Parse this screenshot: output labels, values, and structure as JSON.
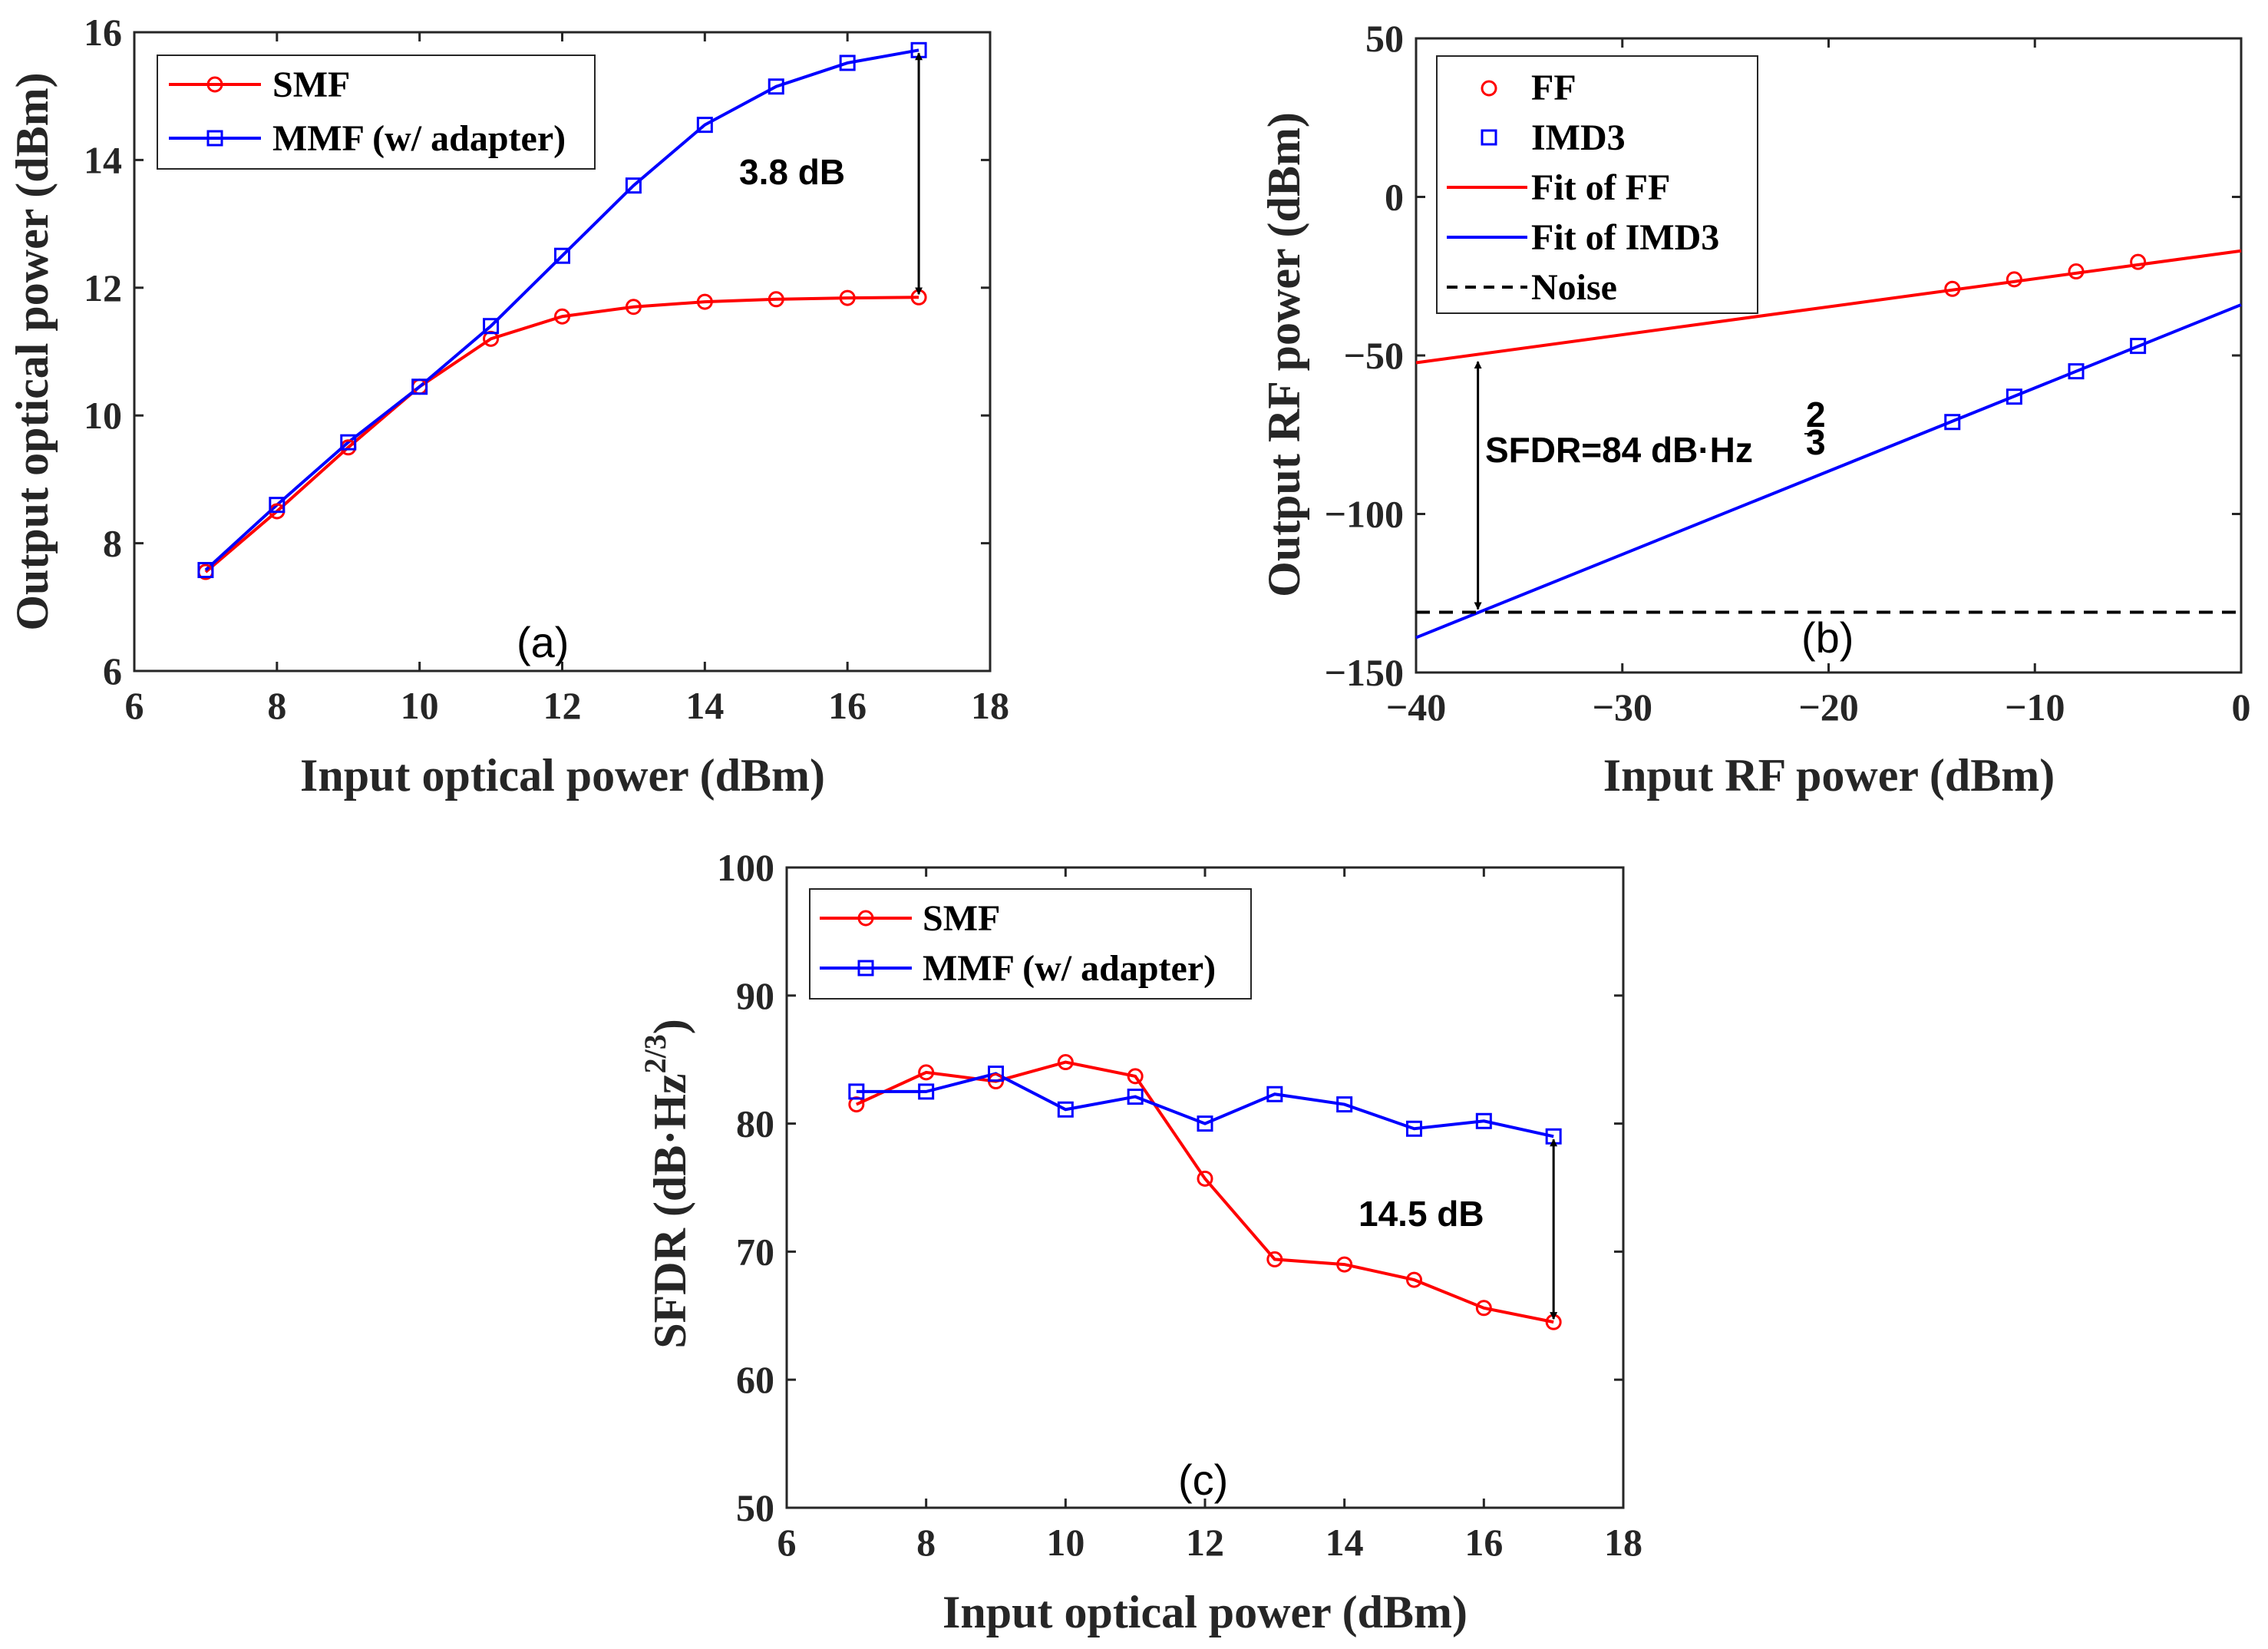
{
  "chart_data": [
    {
      "type": "line",
      "panel_label": "(a)",
      "xlabel": "Input optical power (dBm)",
      "ylabel": "Output optical power (dBm)",
      "xlim": [
        6,
        18
      ],
      "ylim": [
        6,
        16
      ],
      "xticks": [
        6,
        8,
        10,
        12,
        14,
        16,
        18
      ],
      "yticks": [
        6,
        8,
        10,
        12,
        14,
        16
      ],
      "legend_position": "top-left",
      "series": [
        {
          "name": "SMF",
          "color": "#ff0000",
          "marker": "circle",
          "x": [
            7,
            8,
            9,
            10,
            11,
            12,
            13,
            14,
            15,
            16,
            17
          ],
          "values": [
            7.55,
            8.5,
            9.5,
            10.45,
            11.2,
            11.55,
            11.7,
            11.78,
            11.82,
            11.84,
            11.85
          ]
        },
        {
          "name": "MMF (w/ adapter)",
          "color": "#0000ff",
          "marker": "square",
          "x": [
            7,
            8,
            9,
            10,
            11,
            12,
            13,
            14,
            15,
            16,
            17
          ],
          "values": [
            7.58,
            8.6,
            9.58,
            10.45,
            11.4,
            12.5,
            13.6,
            14.55,
            15.15,
            15.52,
            15.72
          ]
        }
      ],
      "annotation": {
        "text": "3.8 dB",
        "arrow_x": 17,
        "arrow_from": 15.72,
        "arrow_to": 11.85
      }
    },
    {
      "type": "scatter",
      "panel_label": "(b)",
      "xlabel": "Input RF power (dBm)",
      "ylabel": "Output RF power (dBm)",
      "xlim": [
        -40,
        0
      ],
      "ylim": [
        -150,
        50
      ],
      "xticks": [
        -40,
        -30,
        -20,
        -10,
        0
      ],
      "xtick_labels": [
        "−40",
        "−30",
        "−20",
        "−10",
        "0"
      ],
      "yticks": [
        -150,
        -100,
        -50,
        0,
        50
      ],
      "ytick_labels": [
        "−150",
        "−100",
        "−50",
        "0",
        "50"
      ],
      "legend_position": "top-left",
      "legend": [
        "FF",
        "IMD3",
        "Fit of FF",
        "Fit of IMD3",
        "Noise"
      ],
      "series": [
        {
          "name": "FF",
          "color": "#ff0000",
          "marker": "circle",
          "x": [
            -14,
            -11,
            -8,
            -5
          ],
          "values": [
            -29,
            -26,
            -23.5,
            -20.5
          ]
        },
        {
          "name": "IMD3",
          "color": "#0000ff",
          "marker": "square",
          "x": [
            -14,
            -11,
            -8,
            -5
          ],
          "values": [
            -71,
            -63,
            -55,
            -47
          ]
        }
      ],
      "fits": [
        {
          "name": "Fit of FF",
          "color": "#ff0000",
          "x": [
            -40,
            0
          ],
          "values": [
            -52.3,
            -17
          ]
        },
        {
          "name": "Fit of IMD3",
          "color": "#0000ff",
          "x": [
            -40,
            0
          ],
          "values": [
            -139,
            -34
          ]
        }
      ],
      "noise": {
        "name": "Noise",
        "level": -131
      },
      "annotation": {
        "text_main": "SFDR=84 dB·Hz",
        "exp_num": "2",
        "exp_den": "3",
        "arrow_x": -37,
        "arrow_from": -51,
        "arrow_to": -131
      }
    },
    {
      "type": "line",
      "panel_label": "(c)",
      "xlabel": "Input optical power (dBm)",
      "ylabel_main": "SFDR (dB·Hz",
      "ylabel_sup": "2/3",
      "ylabel_close": ")",
      "xlim": [
        6,
        18
      ],
      "ylim": [
        50,
        100
      ],
      "xticks": [
        6,
        8,
        10,
        12,
        14,
        16,
        18
      ],
      "yticks": [
        50,
        60,
        70,
        80,
        90,
        100
      ],
      "legend_position": "top-left",
      "series": [
        {
          "name": "SMF",
          "color": "#ff0000",
          "marker": "circle",
          "x": [
            7,
            8,
            9,
            10,
            11,
            12,
            13,
            14,
            15,
            16,
            17
          ],
          "values": [
            81.5,
            84,
            83.3,
            84.8,
            83.7,
            75.7,
            69.4,
            69,
            67.8,
            65.6,
            64.5
          ]
        },
        {
          "name": "MMF (w/ adapter)",
          "color": "#0000ff",
          "marker": "square",
          "x": [
            7,
            8,
            9,
            10,
            11,
            12,
            13,
            14,
            15,
            16,
            17
          ],
          "values": [
            82.5,
            82.5,
            83.9,
            81.1,
            82.1,
            80,
            82.3,
            81.5,
            79.6,
            80.2,
            79
          ]
        }
      ],
      "annotation": {
        "text": "14.5 dB",
        "arrow_x": 17,
        "arrow_from": 79,
        "arrow_to": 64.5
      }
    }
  ]
}
